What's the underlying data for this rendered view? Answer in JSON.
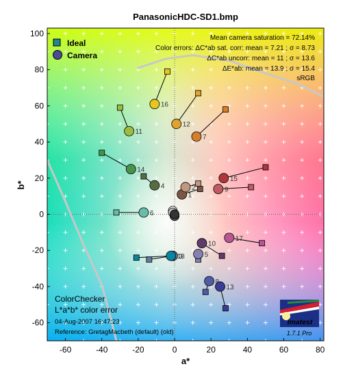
{
  "chart_data": {
    "type": "scatter",
    "title": "PanasonicHDC-SD1.bmp",
    "xlabel": "a*",
    "ylabel": "b*",
    "xlim": [
      -70,
      82
    ],
    "ylim": [
      -70,
      103
    ],
    "xticks": [
      -60,
      -40,
      -20,
      0,
      20,
      40,
      60,
      80
    ],
    "yticks": [
      -60,
      -40,
      -20,
      0,
      20,
      40,
      60,
      80,
      100
    ],
    "grid": true,
    "legend": {
      "position": "top-left",
      "items": [
        {
          "label": "Ideal",
          "marker": "square"
        },
        {
          "label": "Camera",
          "marker": "circle"
        }
      ]
    },
    "stats": [
      "Mean camera saturation = 72.14%",
      "Color errors:  ΔC*ab sat. corr:  mean = 7.21 ;  σ = 8.73",
      "ΔC*ab uncorr:  mean = 11 ;  σ = 13.6",
      "ΔE*ab:  mean = 13.9 ;  σ = 15.4",
      "sRGB"
    ],
    "annotation_title": [
      "ColorChecker",
      "L*a*b* color error"
    ],
    "footer": [
      "04-Aug-2007 16:47:23",
      "Reference: GretagMacbeth (default) (old)"
    ],
    "logo": {
      "text": "Imatest",
      "version": "1.7.1  Pro"
    },
    "patches": [
      {
        "n": "1",
        "ideal": [
          14,
          14
        ],
        "camera": [
          4,
          11
        ],
        "color": "#7a5646"
      },
      {
        "n": "2",
        "ideal": [
          13,
          17
        ],
        "camera": [
          6,
          15
        ],
        "color": "#c29782"
      },
      {
        "n": "3",
        "ideal": [
          -14,
          -25
        ],
        "camera": [
          -1,
          -23
        ],
        "color": "#627a9d"
      },
      {
        "n": "4",
        "ideal": [
          -17,
          21
        ],
        "camera": [
          -11,
          16
        ],
        "color": "#576c43"
      },
      {
        "n": "5",
        "ideal": [
          13,
          -25
        ],
        "camera": [
          13,
          -22
        ],
        "color": "#8580b1"
      },
      {
        "n": "6",
        "ideal": [
          -32,
          1
        ],
        "camera": [
          -17,
          1
        ],
        "color": "#67bdaa"
      },
      {
        "n": "7",
        "ideal": [
          28,
          58
        ],
        "camera": [
          12,
          43
        ],
        "color": "#d67e2c"
      },
      {
        "n": "8",
        "ideal": [
          17,
          -43
        ],
        "camera": [
          19,
          -37
        ],
        "color": "#505ba6"
      },
      {
        "n": "9",
        "ideal": [
          42,
          15
        ],
        "camera": [
          24,
          14
        ],
        "color": "#c15a63"
      },
      {
        "n": "10",
        "ideal": [
          26,
          -23
        ],
        "camera": [
          15,
          -16
        ],
        "color": "#5e3c6c"
      },
      {
        "n": "11",
        "ideal": [
          -30,
          59
        ],
        "camera": [
          -25,
          46
        ],
        "color": "#9dbc40"
      },
      {
        "n": "12",
        "ideal": [
          13,
          67
        ],
        "camera": [
          1,
          50
        ],
        "color": "#e0a32e"
      },
      {
        "n": "13",
        "ideal": [
          28,
          -52
        ],
        "camera": [
          25,
          -40
        ],
        "color": "#383d96"
      },
      {
        "n": "14",
        "ideal": [
          -40,
          34
        ],
        "camera": [
          -24,
          25
        ],
        "color": "#469449"
      },
      {
        "n": "15",
        "ideal": [
          50,
          26
        ],
        "camera": [
          27,
          20
        ],
        "color": "#af363c"
      },
      {
        "n": "16",
        "ideal": [
          -4,
          79
        ],
        "camera": [
          -11,
          61
        ],
        "color": "#e7c71f"
      },
      {
        "n": "17",
        "ideal": [
          48,
          -16
        ],
        "camera": [
          30,
          -13
        ],
        "color": "#bb5695"
      },
      {
        "n": "18",
        "ideal": [
          -21,
          -24
        ],
        "camera": [
          -2,
          -23
        ],
        "color": "#0885a1"
      }
    ],
    "neutrals": [
      {
        "camera": [
          -1,
          2
        ],
        "color": "#f3f3f2"
      },
      {
        "camera": [
          -1,
          1
        ],
        "color": "#c8c8c8"
      },
      {
        "camera": [
          0,
          0
        ],
        "color": "#a0a0a0"
      },
      {
        "camera": [
          0,
          -1
        ],
        "color": "#7a7a79"
      },
      {
        "camera": [
          0,
          -1
        ],
        "color": "#555555"
      },
      {
        "camera": [
          0,
          0
        ],
        "color": "#343434"
      }
    ],
    "srgb_boundary_upper": [
      [
        -20,
        81
      ],
      [
        -5,
        86
      ],
      [
        10,
        88
      ],
      [
        30,
        85
      ],
      [
        50,
        78
      ],
      [
        68,
        72
      ],
      [
        82,
        65
      ]
    ],
    "srgb_boundary_lower": [
      [
        -70,
        30
      ],
      [
        -60,
        7
      ],
      [
        -50,
        -17
      ],
      [
        -40,
        -39
      ],
      [
        -35,
        -58
      ],
      [
        -32,
        -70
      ]
    ]
  }
}
